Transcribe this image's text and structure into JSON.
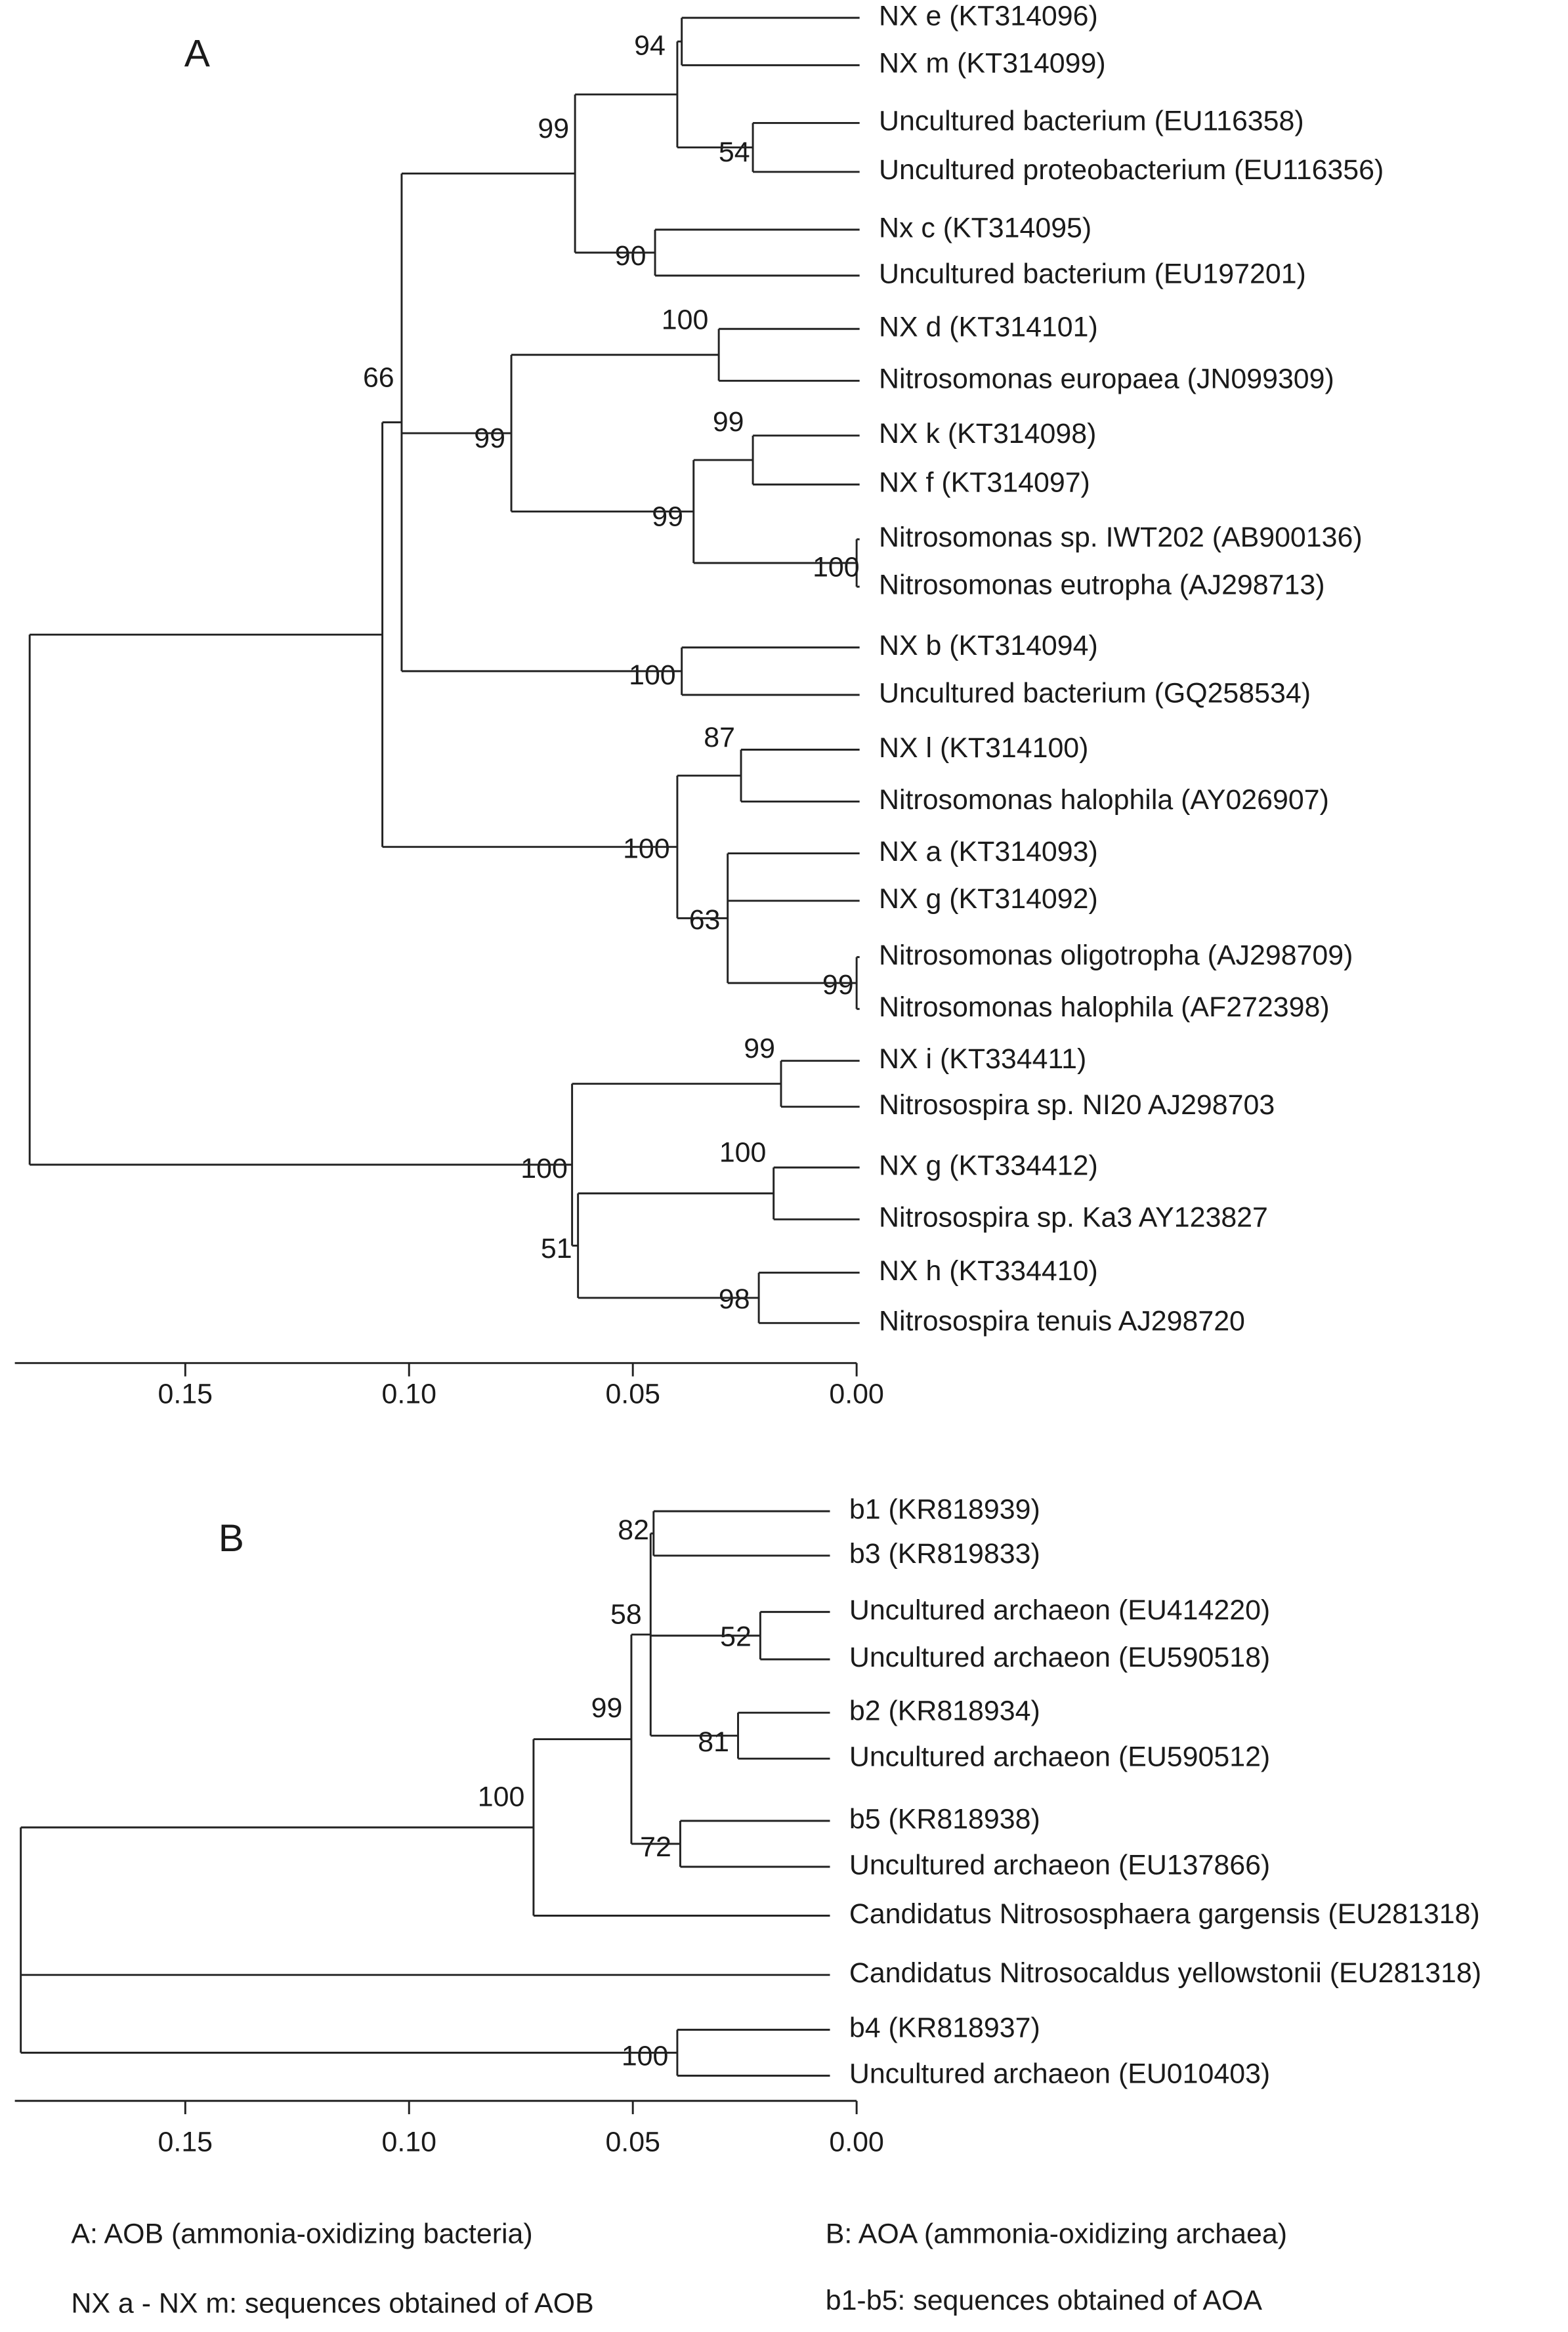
{
  "panels": [
    {
      "label": "A",
      "leaves": [
        "NX e (KT314096)",
        "NX m (KT314099)",
        "Uncultured bacterium (EU116358)",
        "Uncultured proteobacterium (EU116356)",
        "Nx c (KT314095)",
        "Uncultured bacterium (EU197201)",
        "NX d (KT314101)",
        "Nitrosomonas europaea (JN099309)",
        "NX k (KT314098)",
        "NX f (KT314097)",
        "Nitrosomonas sp. IWT202 (AB900136)",
        "Nitrosomonas eutropha (AJ298713)",
        "NX b (KT314094)",
        "Uncultured bacterium (GQ258534)",
        "NX l (KT314100)",
        "Nitrosomonas halophila (AY026907)",
        "NX a (KT314093)",
        "NX g (KT314092)",
        "Nitrosomonas oligotropha (AJ298709)",
        "Nitrosomonas halophila (AF272398)",
        "NX i (KT334411)",
        "Nitrosospira sp. NI20 AJ298703",
        "NX g (KT334412)",
        "Nitrosospira sp. Ka3 AY123827",
        "NX h (KT334410)",
        "Nitrosospira tenuis AJ298720"
      ],
      "bootstrap": [
        94,
        54,
        90,
        99,
        100,
        99,
        100,
        99,
        99,
        100,
        66,
        87,
        99,
        63,
        100,
        99,
        100,
        98,
        51,
        100
      ],
      "scale_ticks": [
        "0.15",
        "0.10",
        "0.05",
        "0.00"
      ]
    },
    {
      "label": "B",
      "leaves": [
        "b1 (KR818939)",
        "b3 (KR819833)",
        "Uncultured archaeon (EU414220)",
        "Uncultured archaeon (EU590518)",
        "b2 (KR818934)",
        "Uncultured archaeon (EU590512)",
        "b5 (KR818938)",
        "Uncultured archaeon (EU137866)",
        "Candidatus Nitrososphaera gargensis (EU281318)",
        "Candidatus Nitrosocaldus yellowstonii (EU281318)",
        "b4 (KR818937)",
        "Uncultured archaeon (EU010403)"
      ],
      "bootstrap": [
        82,
        52,
        81,
        58,
        72,
        99,
        100,
        100
      ],
      "scale_ticks": [
        "0.15",
        "0.10",
        "0.05",
        "0.00"
      ]
    }
  ],
  "notes": [
    "A:   AOB (ammonia-oxidizing bacteria)",
    "B:   AOA (ammonia-oxidizing archaea)",
    "NX a - NX m: sequences obtained of AOB",
    "b1-b5: sequences obtained of AOA"
  ]
}
